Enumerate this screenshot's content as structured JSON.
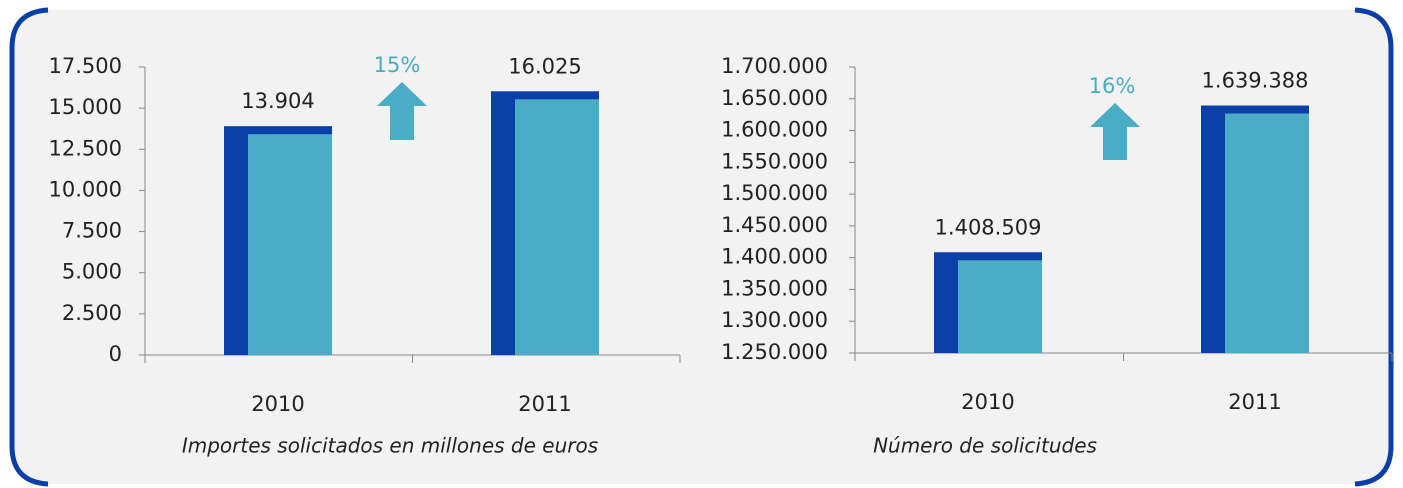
{
  "chart_data": [
    {
      "type": "bar",
      "x_label": "Importes solicitados en millones de euros",
      "annotation": "15%",
      "categories": [
        "2010",
        "2011"
      ],
      "values": [
        13904,
        16025
      ],
      "value_labels": [
        "13.904",
        "16.025"
      ],
      "color": "#0a3fa8",
      "face_color": "#4bacc6",
      "ylim": [
        0,
        17500
      ],
      "yticks": [
        0,
        {
          "value": 2500,
          "label": "2.500"
        },
        {
          "value": 5000,
          "label": "5.000"
        },
        {
          "value": 7500,
          "label": "7.500"
        },
        {
          "value": 10000,
          "label": "10.000"
        },
        {
          "value": 12500,
          "label": "12.500"
        },
        {
          "value": 15000,
          "label": "15.000"
        },
        {
          "value": 17500,
          "label": "17.500"
        }
      ]
    },
    {
      "type": "bar",
      "x_label": "Número de solicitudes",
      "annotation": "16%",
      "categories": [
        "2010",
        "2011"
      ],
      "values": [
        1408509,
        1639388
      ],
      "value_labels": [
        "1.408.509",
        "1.639.388"
      ],
      "color": "#0a3fa8",
      "face_color": "#4bacc6",
      "ylim": [
        1250000,
        1700000
      ],
      "yticks": [
        {
          "value": 1250000,
          "label": "1.250.000"
        },
        {
          "value": 1300000,
          "label": "1.300.000"
        },
        {
          "value": 1350000,
          "label": "1.350.000"
        },
        {
          "value": 1400000,
          "label": "1.400.000"
        },
        {
          "value": 1450000,
          "label": "1.450.000"
        },
        {
          "value": 1500000,
          "label": "1.500.000"
        },
        {
          "value": 1550000,
          "label": "1.550.000"
        },
        {
          "value": 1600000,
          "label": "1.600.000"
        },
        {
          "value": 1650000,
          "label": "1.650.000"
        },
        {
          "value": 1700000,
          "label": "1.700.000"
        }
      ]
    }
  ]
}
